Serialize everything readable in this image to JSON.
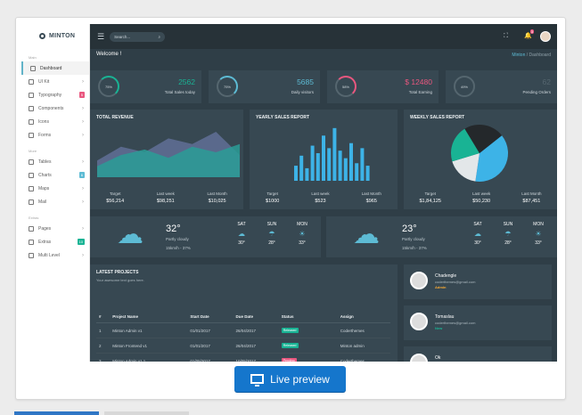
{
  "app": {
    "logo": "MINTON"
  },
  "sidebar": {
    "sections": [
      {
        "heading": "Main",
        "items": [
          {
            "label": "Dashboard",
            "active": true
          },
          {
            "label": "UI Kit",
            "chevron": "›"
          },
          {
            "label": "Typography",
            "badge": "5",
            "badge_color": "#e9577f"
          },
          {
            "label": "Components",
            "chevron": "›"
          },
          {
            "label": "Icons",
            "chevron": "›"
          },
          {
            "label": "Forms",
            "chevron": "›"
          }
        ]
      },
      {
        "heading": "More",
        "items": [
          {
            "label": "Tables",
            "chevron": "›"
          },
          {
            "label": "Charts",
            "badge": "6",
            "badge_color": "#5dbbd4"
          },
          {
            "label": "Maps",
            "chevron": "›"
          },
          {
            "label": "Mail",
            "chevron": "›"
          }
        ]
      },
      {
        "heading": "Extras",
        "items": [
          {
            "label": "Pages",
            "chevron": "›"
          },
          {
            "label": "Extras",
            "badge": "10",
            "badge_color": "#19b394"
          },
          {
            "label": "Multi Level",
            "chevron": "›"
          }
        ]
      }
    ]
  },
  "topbar": {
    "menu_icon": "☰",
    "search_placeholder": "Search...",
    "search_icon": "⌕",
    "expand_icon": "⛶",
    "bell_icon": "🔔",
    "notif_count": "3"
  },
  "page": {
    "title": "Welcome !",
    "breadcrumb": [
      "Minton",
      "/",
      "Dashboard"
    ]
  },
  "stats": [
    {
      "percent": "75%",
      "value": "2562",
      "label": "Total Sales today",
      "color": "#19b394"
    },
    {
      "percent": "75%",
      "value": "5685",
      "label": "Daily visitors",
      "color": "#5dbbd4"
    },
    {
      "percent": "58%",
      "value": "$ 12480",
      "label": "Total Earning",
      "color": "#e9577f"
    },
    {
      "percent": "49%",
      "value": "62",
      "label": "Pending Orders",
      "color": "#55666f"
    }
  ],
  "charts": {
    "revenue": {
      "title": "TOTAL REVENUE",
      "legend": [
        {
          "label": "Target",
          "value": "$56,214"
        },
        {
          "label": "Last week",
          "value": "$98,251"
        },
        {
          "label": "Last Month",
          "value": "$10,025"
        }
      ]
    },
    "yearly": {
      "title": "YEARLY SALES REPORT",
      "legend": [
        {
          "label": "Target",
          "value": "$1000"
        },
        {
          "label": "Last week",
          "value": "$523"
        },
        {
          "label": "Last Month",
          "value": "$965"
        }
      ]
    },
    "weekly": {
      "title": "WEEKLY SALES REPORT",
      "legend": [
        {
          "label": "Target",
          "value": "$1,84,125"
        },
        {
          "label": "Last week",
          "value": "$50,230"
        },
        {
          "label": "Last Month",
          "value": "$87,451"
        }
      ]
    }
  },
  "chart_data": [
    {
      "type": "area",
      "title": "TOTAL REVENUE",
      "series": [
        {
          "values": [
            30,
            55,
            45,
            70,
            60,
            82,
            40
          ]
        },
        {
          "values": [
            20,
            40,
            50,
            35,
            55,
            45,
            60
          ]
        }
      ],
      "colors": [
        "#5c6b8f",
        "#2a9e97"
      ]
    },
    {
      "type": "bar",
      "title": "YEARLY SALES REPORT",
      "values": [
        6,
        10,
        5,
        14,
        11,
        18,
        13,
        21,
        12,
        9,
        15,
        7,
        13,
        6
      ],
      "colors": [
        "#3db3e7"
      ]
    },
    {
      "type": "pie",
      "title": "WEEKLY SALES REPORT",
      "values": [
        38,
        18,
        21,
        23
      ],
      "colors": [
        "#3db3e7",
        "#e3e7e9",
        "#19b394",
        "#24282b"
      ]
    }
  ],
  "weather": [
    {
      "temp": "32°",
      "desc": "Partly cloudy",
      "wind": "15km/h - 37%",
      "icon": "☁",
      "days": [
        {
          "day": "SAT",
          "icon": "☁",
          "temp": "30°"
        },
        {
          "day": "SUN",
          "icon": "☂",
          "temp": "28°"
        },
        {
          "day": "MON",
          "icon": "☀",
          "temp": "33°"
        }
      ]
    },
    {
      "temp": "23°",
      "desc": "Partly cloudy",
      "wind": "15km/h - 37%",
      "icon": "☁",
      "days": [
        {
          "day": "SAT",
          "icon": "☁",
          "temp": "30°"
        },
        {
          "day": "SUN",
          "icon": "☂",
          "temp": "28°"
        },
        {
          "day": "MON",
          "icon": "☀",
          "temp": "33°"
        }
      ]
    }
  ],
  "projects": {
    "title": "LATEST PROJECTS",
    "subtitle": "Your awesome text goes here.",
    "columns": [
      "#",
      "Project Name",
      "Start Date",
      "Due Date",
      "Status",
      "Assign"
    ],
    "rows": [
      [
        "1",
        "Minton Admin v1",
        "01/01/2017",
        "26/04/2017",
        "Released",
        "Coderthemes"
      ],
      [
        "2",
        "Minton Frontend v1",
        "01/01/2017",
        "26/04/2017",
        "Released",
        "Minton admin"
      ],
      [
        "3",
        "Minton Admin v1.1",
        "01/05/2017",
        "10/05/2017",
        "Pending",
        "Coderthemes"
      ],
      [
        "4",
        "Minton Frontend v1.1",
        "01/01/2017",
        "31/05/2017",
        "Work in Progress",
        "Coderthemes"
      ]
    ],
    "status_colors": {
      "Released": "#19b394",
      "Pending": "#e9577f",
      "Work in Progress": "#7e57c2"
    }
  },
  "contacts": [
    {
      "name": "Chadengle",
      "email": "coderthemes@gmail.com",
      "role": "Admin",
      "role_color": "#f7a933"
    },
    {
      "name": "Tomaslau",
      "email": "coderthemes@gmail.com",
      "role": "New",
      "role_color": "#19b394"
    },
    {
      "name": "Ok",
      "email": "coderthemes@gmail.com",
      "role": "",
      "role_color": "#19b394"
    }
  ],
  "cta": {
    "label": "Live preview",
    "color": "#1576cc"
  }
}
